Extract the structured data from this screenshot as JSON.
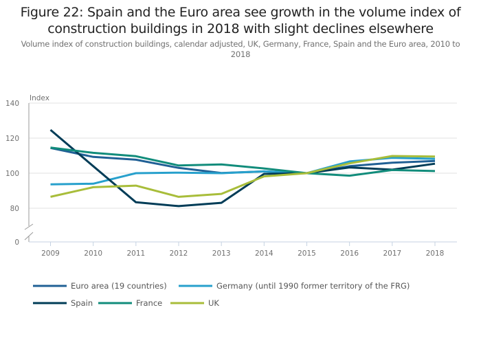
{
  "title": "Figure 22: Spain and the Euro area see growth in the volume index of construction buildings in 2018 with slight declines elsewhere",
  "subtitle": "Volume index of construction buildings, calendar adjusted, UK, Germany, France, Spain and the Euro area, 2010 to 2018",
  "chart_data": {
    "type": "line",
    "title": "Figure 22: Spain and the Euro area see growth in the volume index of construction buildings in 2018 with slight declines elsewhere",
    "subtitle": "Volume index of construction buildings, calendar adjusted, UK, Germany, France, Spain and the Euro area, 2010 to 2018",
    "xlabel": "",
    "ylabel": "Index",
    "x": [
      "2009",
      "2010",
      "2011",
      "2012",
      "2013",
      "2014",
      "2015",
      "2016",
      "2017",
      "2018"
    ],
    "yticks": [
      0,
      80,
      100,
      120,
      140
    ],
    "ylim": [
      70,
      140
    ],
    "y_axis_break": true,
    "grid": true,
    "legend_position": "bottom",
    "series": [
      {
        "name": "Euro area (19 countries)",
        "color": "#206095",
        "values": [
          114.4,
          109.3,
          107.7,
          103.0,
          100.1,
          101.0,
          100,
          104.0,
          106.0,
          107.0
        ]
      },
      {
        "name": "Germany (until 1990 former territory of the FRG)",
        "color": "#27a0cc",
        "values": [
          93.6,
          94.0,
          100.0,
          100.3,
          100.0,
          101.0,
          100,
          106.7,
          108.8,
          108.2
        ]
      },
      {
        "name": "Spain",
        "color": "#003c57",
        "values": [
          124.7,
          104.0,
          83.4,
          81.2,
          83.1,
          99.6,
          100,
          103.3,
          102.0,
          105.4
        ]
      },
      {
        "name": "France",
        "color": "#118c7b",
        "values": [
          114.6,
          111.6,
          109.7,
          104.4,
          105.0,
          102.7,
          100,
          98.6,
          101.8,
          101.2
        ]
      },
      {
        "name": "UK",
        "color": "#a8bd3a",
        "values": [
          86.5,
          92.0,
          92.9,
          86.5,
          88.2,
          98.2,
          100,
          105.6,
          109.8,
          109.5
        ]
      }
    ]
  }
}
